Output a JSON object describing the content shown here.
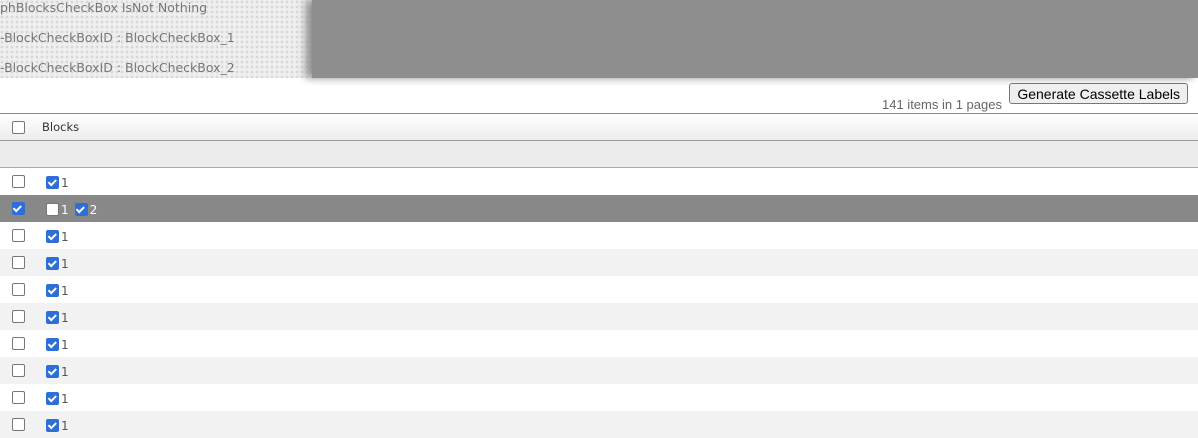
{
  "debug": {
    "lines": [
      "phBlocksCheckBox IsNot Nothing",
      "-BlockCheckBoxID : BlockCheckBox_1",
      "-BlockCheckBoxID : BlockCheckBox_2"
    ]
  },
  "toolbar": {
    "generate_label": "Generate Cassette Labels",
    "items_count": "141 items in 1 pages"
  },
  "grid": {
    "header": {
      "blocks": "Blocks",
      "select_all": false
    },
    "rows": [
      {
        "selected": false,
        "blocks": [
          {
            "label": "1",
            "checked": true
          }
        ]
      },
      {
        "selected": true,
        "blocks": [
          {
            "label": "1",
            "checked": false
          },
          {
            "label": "2",
            "checked": true
          }
        ]
      },
      {
        "selected": false,
        "blocks": [
          {
            "label": "1",
            "checked": true
          }
        ]
      },
      {
        "selected": false,
        "blocks": [
          {
            "label": "1",
            "checked": true
          }
        ]
      },
      {
        "selected": false,
        "blocks": [
          {
            "label": "1",
            "checked": true
          }
        ]
      },
      {
        "selected": false,
        "blocks": [
          {
            "label": "1",
            "checked": true
          }
        ]
      },
      {
        "selected": false,
        "blocks": [
          {
            "label": "1",
            "checked": true
          }
        ]
      },
      {
        "selected": false,
        "blocks": [
          {
            "label": "1",
            "checked": true
          }
        ]
      },
      {
        "selected": false,
        "blocks": [
          {
            "label": "1",
            "checked": true
          }
        ]
      },
      {
        "selected": false,
        "blocks": [
          {
            "label": "1",
            "checked": true
          }
        ]
      }
    ]
  }
}
